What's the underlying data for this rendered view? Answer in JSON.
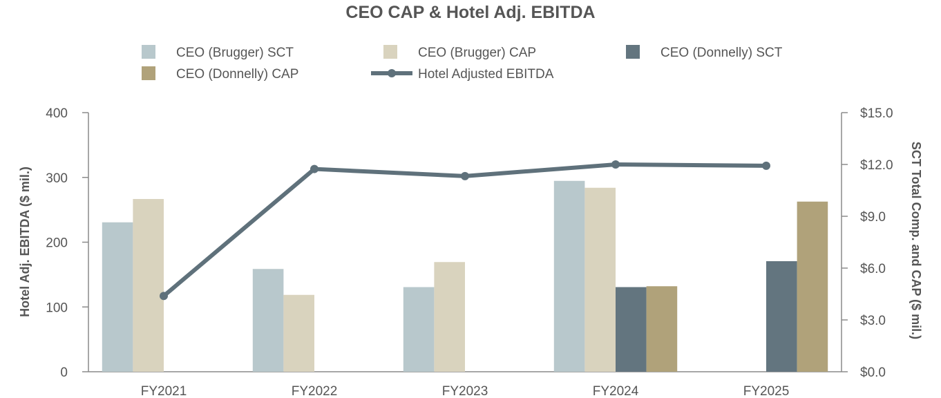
{
  "chart_data": {
    "type": "bar",
    "title": "CEO CAP & Hotel Adj. EBITDA",
    "categories": [
      "FY2021",
      "FY2022",
      "FY2023",
      "FY2024",
      "FY2025"
    ],
    "ylabel_left": "Hotel Adj. EBITDA ($ mil.)",
    "ylabel_right": "SCT Total Comp. and CAP ($ mil.)",
    "ylim_left": [
      0,
      400
    ],
    "yticks_left": [
      "0",
      "100",
      "200",
      "300",
      "400"
    ],
    "ylim_right": [
      0,
      15
    ],
    "yticks_right": [
      "$0.0",
      "$3.0",
      "$6.0",
      "$9.0",
      "$12.0",
      "$15.0"
    ],
    "grid": false,
    "legend_position": "top",
    "series": [
      {
        "name": "CEO (Brugger) SCT",
        "kind": "bar",
        "axis": "right",
        "color": "#b8c8cc",
        "values": [
          8.65,
          5.95,
          4.9,
          11.05,
          null
        ]
      },
      {
        "name": "CEO (Brugger) CAP",
        "kind": "bar",
        "axis": "right",
        "color": "#d9d3be",
        "values": [
          10.0,
          4.45,
          6.35,
          10.65,
          null
        ]
      },
      {
        "name": "CEO (Donnelly) SCT",
        "kind": "bar",
        "axis": "right",
        "color": "#63757f",
        "values": [
          null,
          null,
          null,
          4.9,
          6.4
        ]
      },
      {
        "name": "CEO (Donnelly) CAP",
        "kind": "bar",
        "axis": "right",
        "color": "#b0a27a",
        "values": [
          null,
          null,
          null,
          4.95,
          9.85
        ]
      },
      {
        "name": "Hotel Adjusted EBITDA",
        "kind": "line",
        "axis": "left",
        "color": "#5f717b",
        "values": [
          117,
          313,
          302,
          320,
          318
        ]
      }
    ]
  }
}
